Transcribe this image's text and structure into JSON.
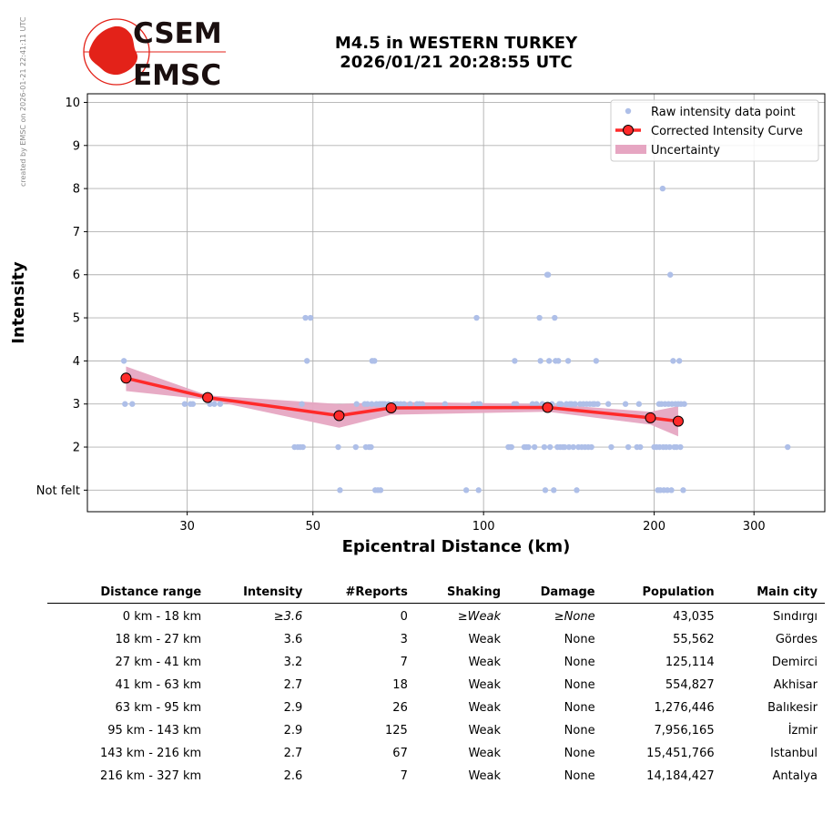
{
  "side_note": "created by EMSC on 2026-01-21 22:41:11 UTC",
  "logo": {
    "top_text": "CSEM",
    "bottom_text": "EMSC",
    "colors": {
      "globe": "#e32219",
      "text": "#1a0f0f"
    }
  },
  "title": {
    "line1": "M4.5 in WESTERN TURKEY",
    "line2": "2026/01/21 20:28:55 UTC"
  },
  "chart_data": {
    "type": "scatter",
    "xlabel": "Epicentral Distance (km)",
    "ylabel": "Intensity",
    "x_scale": "log",
    "xlim": [
      20,
      400
    ],
    "ylim": [
      0.5,
      10.2
    ],
    "x_ticks": [
      30,
      50,
      100,
      200,
      300
    ],
    "y_ticks": [
      {
        "value": 1,
        "label": "Not felt"
      },
      {
        "value": 2,
        "label": "2"
      },
      {
        "value": 3,
        "label": "3"
      },
      {
        "value": 4,
        "label": "4"
      },
      {
        "value": 5,
        "label": "5"
      },
      {
        "value": 6,
        "label": "6"
      },
      {
        "value": 7,
        "label": "7"
      },
      {
        "value": 8,
        "label": "8"
      },
      {
        "value": 9,
        "label": "9"
      },
      {
        "value": 10,
        "label": "10"
      }
    ],
    "grid": true,
    "legend": {
      "placement": "top-right",
      "entries": [
        "Raw intensity data point",
        "Corrected Intensity Curve",
        "Uncertainty"
      ]
    },
    "colors": {
      "raw": "#aebfe8",
      "curve": "#ff2a2a",
      "marker_edge": "#000000",
      "band": "#e6a6c2"
    },
    "series": [
      {
        "name": "Raw intensity data point",
        "points": [
          [
            23.2,
            4
          ],
          [
            23.3,
            3
          ],
          [
            24.0,
            3
          ],
          [
            29.7,
            3
          ],
          [
            30.4,
            3
          ],
          [
            30.7,
            3
          ],
          [
            32.9,
            3
          ],
          [
            33.5,
            3
          ],
          [
            34.3,
            3
          ],
          [
            46.4,
            2
          ],
          [
            47.0,
            2
          ],
          [
            47.5,
            2
          ],
          [
            48.0,
            2
          ],
          [
            47.8,
            3
          ],
          [
            48.5,
            5
          ],
          [
            49.5,
            5
          ],
          [
            48.8,
            4
          ],
          [
            55.4,
            2
          ],
          [
            55.8,
            1
          ],
          [
            59.5,
            2
          ],
          [
            59.7,
            3
          ],
          [
            61.7,
            3
          ],
          [
            62.0,
            2
          ],
          [
            62.4,
            3
          ],
          [
            62.8,
            2
          ],
          [
            63.3,
            2
          ],
          [
            63.5,
            3
          ],
          [
            63.6,
            4
          ],
          [
            64.2,
            4
          ],
          [
            64.4,
            1
          ],
          [
            64.7,
            3
          ],
          [
            65.1,
            1
          ],
          [
            65.5,
            3
          ],
          [
            65.8,
            1
          ],
          [
            66.0,
            3
          ],
          [
            66.5,
            3
          ],
          [
            67.0,
            3
          ],
          [
            68.0,
            3
          ],
          [
            69.5,
            3
          ],
          [
            70.4,
            3
          ],
          [
            71.4,
            3
          ],
          [
            72.4,
            3
          ],
          [
            74.2,
            3
          ],
          [
            76.3,
            3
          ],
          [
            77.1,
            3
          ],
          [
            78.0,
            3
          ],
          [
            85.5,
            3
          ],
          [
            93.2,
            1
          ],
          [
            95.9,
            3
          ],
          [
            97.2,
            5
          ],
          [
            97.5,
            3
          ],
          [
            98.0,
            1
          ],
          [
            98.5,
            3
          ],
          [
            110.6,
            2
          ],
          [
            111.5,
            2
          ],
          [
            112.0,
            2
          ],
          [
            113.2,
            3
          ],
          [
            113.5,
            4
          ],
          [
            114.3,
            3
          ],
          [
            118.0,
            2
          ],
          [
            119.0,
            2
          ],
          [
            120.0,
            2
          ],
          [
            122.0,
            3
          ],
          [
            123.0,
            2
          ],
          [
            124.0,
            3
          ],
          [
            125.5,
            5
          ],
          [
            126.0,
            4
          ],
          [
            127.0,
            3
          ],
          [
            128.0,
            2
          ],
          [
            128.5,
            1
          ],
          [
            129.5,
            6
          ],
          [
            130.0,
            6
          ],
          [
            130.5,
            4
          ],
          [
            131.0,
            2
          ],
          [
            132.0,
            3
          ],
          [
            133.0,
            1
          ],
          [
            133.5,
            5
          ],
          [
            134.0,
            4
          ],
          [
            135.0,
            2
          ],
          [
            135.5,
            4
          ],
          [
            136.0,
            3
          ],
          [
            136.5,
            2
          ],
          [
            137.0,
            3
          ],
          [
            138.0,
            2
          ],
          [
            139.0,
            2
          ],
          [
            140.0,
            3
          ],
          [
            141.0,
            4
          ],
          [
            141.5,
            2
          ],
          [
            142.0,
            3
          ],
          [
            143.0,
            3
          ],
          [
            144.0,
            2
          ],
          [
            145.0,
            3
          ],
          [
            146.0,
            1
          ],
          [
            147.0,
            2
          ],
          [
            148.0,
            3
          ],
          [
            149.0,
            2
          ],
          [
            150.0,
            3
          ],
          [
            151.0,
            2
          ],
          [
            152.0,
            3
          ],
          [
            153.0,
            2
          ],
          [
            154.0,
            3
          ],
          [
            155.0,
            2
          ],
          [
            156.0,
            3
          ],
          [
            157.0,
            3
          ],
          [
            158.0,
            4
          ],
          [
            159.0,
            3
          ],
          [
            166.0,
            3
          ],
          [
            168.0,
            2
          ],
          [
            178.0,
            3
          ],
          [
            180.0,
            2
          ],
          [
            186.5,
            2
          ],
          [
            188.0,
            3
          ],
          [
            189.0,
            2
          ],
          [
            200.0,
            2
          ],
          [
            202.0,
            2
          ],
          [
            203.0,
            1
          ],
          [
            204.0,
            3
          ],
          [
            204.5,
            2
          ],
          [
            205.0,
            1
          ],
          [
            206.0,
            3
          ],
          [
            207.0,
            8
          ],
          [
            207.5,
            2
          ],
          [
            208.0,
            1
          ],
          [
            209.0,
            3
          ],
          [
            210.0,
            2
          ],
          [
            211.0,
            1
          ],
          [
            212.0,
            3
          ],
          [
            213.0,
            2
          ],
          [
            213.5,
            6
          ],
          [
            214.5,
            1
          ],
          [
            215.0,
            3
          ],
          [
            216.0,
            4
          ],
          [
            217.0,
            2
          ],
          [
            218.0,
            3
          ],
          [
            219.0,
            2
          ],
          [
            220.5,
            3
          ],
          [
            221.5,
            4
          ],
          [
            222.5,
            2
          ],
          [
            223.0,
            3
          ],
          [
            225.0,
            1
          ],
          [
            226.0,
            3
          ],
          [
            344.0,
            2
          ]
        ]
      },
      {
        "name": "Corrected Intensity Curve",
        "points": [
          [
            23.4,
            3.6
          ],
          [
            32.6,
            3.15
          ],
          [
            55.6,
            2.73
          ],
          [
            68.7,
            2.91
          ],
          [
            129.7,
            2.92
          ],
          [
            197.0,
            2.68
          ],
          [
            220.5,
            2.6
          ]
        ]
      },
      {
        "name": "Uncertainty",
        "upper": [
          [
            23.4,
            3.87
          ],
          [
            32.6,
            3.2
          ],
          [
            55.6,
            3.0
          ],
          [
            68.7,
            3.05
          ],
          [
            129.7,
            3.0
          ],
          [
            197.0,
            2.82
          ],
          [
            220.5,
            2.95
          ]
        ],
        "lower": [
          [
            23.4,
            3.3
          ],
          [
            32.6,
            3.1
          ],
          [
            55.6,
            2.45
          ],
          [
            68.7,
            2.75
          ],
          [
            129.7,
            2.82
          ],
          [
            197.0,
            2.52
          ],
          [
            220.5,
            2.25
          ]
        ]
      }
    ]
  },
  "table": {
    "headers": [
      "Distance range",
      "Intensity",
      "#Reports",
      "Shaking",
      "Damage",
      "Population",
      "Main city"
    ],
    "rows": [
      [
        "0 km -   18 km",
        "≥3.6",
        "0",
        "≥Weak",
        "≥None",
        "43,035",
        "Sındırgı"
      ],
      [
        "18 km -   27 km",
        "3.6",
        "3",
        "Weak",
        "None",
        "55,562",
        "Gördes"
      ],
      [
        "27 km -   41 km",
        "3.2",
        "7",
        "Weak",
        "None",
        "125,114",
        "Demirci"
      ],
      [
        "41 km -   63 km",
        "2.7",
        "18",
        "Weak",
        "None",
        "554,827",
        "Akhisar"
      ],
      [
        "63 km -   95 km",
        "2.9",
        "26",
        "Weak",
        "None",
        "1,276,446",
        "Balıkesir"
      ],
      [
        "95 km -  143 km",
        "2.9",
        "125",
        "Weak",
        "None",
        "7,956,165",
        "İzmir"
      ],
      [
        "143 km -  216 km",
        "2.7",
        "67",
        "Weak",
        "None",
        "15,451,766",
        "Istanbul"
      ],
      [
        "216 km -  327 km",
        "2.6",
        "7",
        "Weak",
        "None",
        "14,184,427",
        "Antalya"
      ]
    ]
  }
}
